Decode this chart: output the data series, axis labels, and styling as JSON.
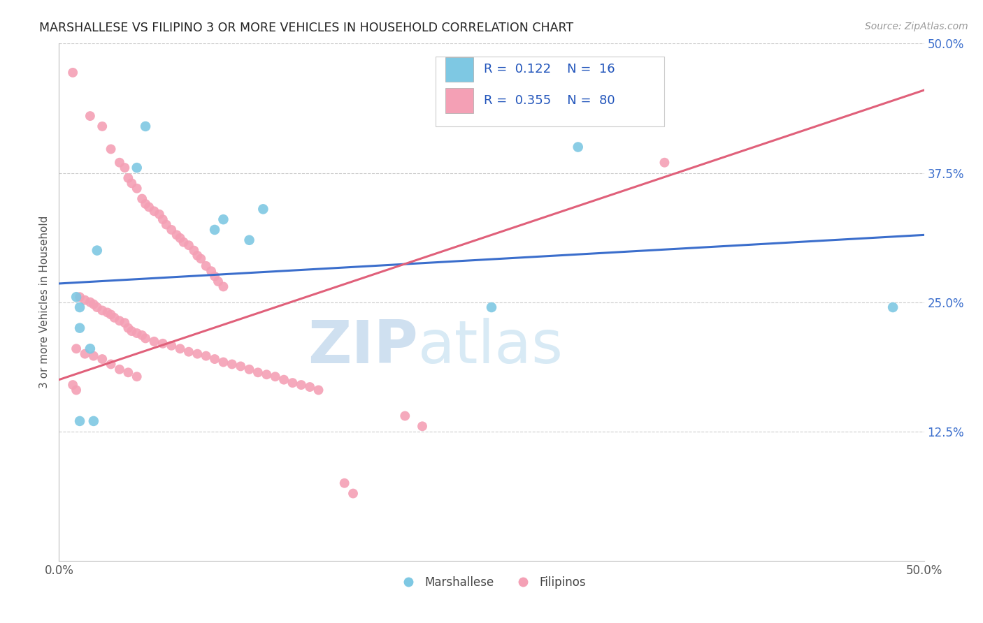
{
  "title": "MARSHALLESE VS FILIPINO 3 OR MORE VEHICLES IN HOUSEHOLD CORRELATION CHART",
  "source": "Source: ZipAtlas.com",
  "ylabel": "3 or more Vehicles in Household",
  "xlim": [
    0.0,
    0.5
  ],
  "ylim": [
    0.0,
    0.5
  ],
  "ytick_positions": [
    0.125,
    0.25,
    0.375,
    0.5
  ],
  "ytick_labels": [
    "12.5%",
    "25.0%",
    "37.5%",
    "50.0%"
  ],
  "watermark_zip": "ZIP",
  "watermark_atlas": "atlas",
  "legend_blue_R": "0.122",
  "legend_blue_N": "16",
  "legend_pink_R": "0.355",
  "legend_pink_N": "80",
  "legend_label_blue": "Marshallese",
  "legend_label_pink": "Filipinos",
  "blue_color": "#7ec8e3",
  "pink_color": "#f4a0b5",
  "blue_line_color": "#3b6ecc",
  "pink_line_color": "#e0607a",
  "blue_line_y0": 0.268,
  "blue_line_y1": 0.315,
  "pink_line_y0": 0.175,
  "pink_line_y1": 0.455,
  "marshallese_x": [
    0.045,
    0.01,
    0.012,
    0.022,
    0.05,
    0.09,
    0.095,
    0.11,
    0.118,
    0.012,
    0.3,
    0.482,
    0.25,
    0.018,
    0.02,
    0.012
  ],
  "marshallese_y": [
    0.38,
    0.255,
    0.225,
    0.3,
    0.42,
    0.32,
    0.33,
    0.31,
    0.34,
    0.135,
    0.4,
    0.245,
    0.245,
    0.205,
    0.135,
    0.245
  ],
  "filipino_x": [
    0.008,
    0.018,
    0.025,
    0.03,
    0.035,
    0.038,
    0.04,
    0.042,
    0.045,
    0.048,
    0.05,
    0.052,
    0.055,
    0.058,
    0.06,
    0.062,
    0.065,
    0.068,
    0.07,
    0.072,
    0.075,
    0.078,
    0.08,
    0.082,
    0.085,
    0.088,
    0.09,
    0.092,
    0.095,
    0.012,
    0.015,
    0.018,
    0.02,
    0.022,
    0.025,
    0.028,
    0.03,
    0.032,
    0.035,
    0.038,
    0.04,
    0.042,
    0.045,
    0.048,
    0.05,
    0.055,
    0.06,
    0.065,
    0.07,
    0.075,
    0.08,
    0.085,
    0.09,
    0.095,
    0.1,
    0.105,
    0.11,
    0.115,
    0.12,
    0.125,
    0.13,
    0.135,
    0.14,
    0.145,
    0.15,
    0.01,
    0.015,
    0.02,
    0.025,
    0.03,
    0.035,
    0.04,
    0.045,
    0.008,
    0.01,
    0.35,
    0.2,
    0.21,
    0.165,
    0.17
  ],
  "filipino_y": [
    0.472,
    0.43,
    0.42,
    0.398,
    0.385,
    0.38,
    0.37,
    0.365,
    0.36,
    0.35,
    0.345,
    0.342,
    0.338,
    0.335,
    0.33,
    0.325,
    0.32,
    0.315,
    0.312,
    0.308,
    0.305,
    0.3,
    0.295,
    0.292,
    0.285,
    0.28,
    0.275,
    0.27,
    0.265,
    0.255,
    0.252,
    0.25,
    0.248,
    0.245,
    0.242,
    0.24,
    0.238,
    0.235,
    0.232,
    0.23,
    0.225,
    0.222,
    0.22,
    0.218,
    0.215,
    0.212,
    0.21,
    0.208,
    0.205,
    0.202,
    0.2,
    0.198,
    0.195,
    0.192,
    0.19,
    0.188,
    0.185,
    0.182,
    0.18,
    0.178,
    0.175,
    0.172,
    0.17,
    0.168,
    0.165,
    0.205,
    0.2,
    0.198,
    0.195,
    0.19,
    0.185,
    0.182,
    0.178,
    0.17,
    0.165,
    0.385,
    0.14,
    0.13,
    0.075,
    0.065
  ]
}
